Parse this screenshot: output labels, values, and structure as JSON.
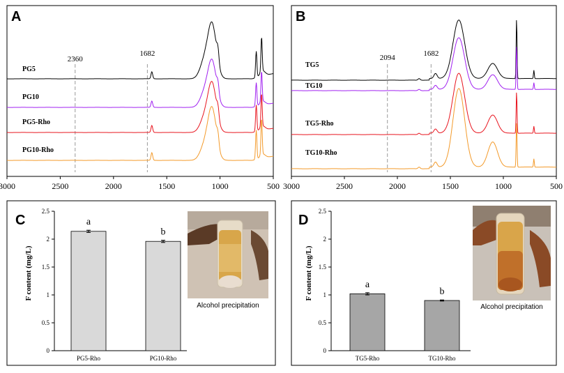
{
  "panels": {
    "A": {
      "letter": "A",
      "type": "line",
      "x_ticks": [
        "3000",
        "2500",
        "2000",
        "1500",
        "1000",
        "500"
      ],
      "xlim": [
        3000,
        500
      ],
      "markers": [
        "2360",
        "1682"
      ],
      "marker_values": [
        2360,
        1682
      ],
      "series": [
        {
          "name": "PG5",
          "color": "#000000"
        },
        {
          "name": "PG10",
          "color": "#a020f0"
        },
        {
          "name": "PG5-Rho",
          "color": "#e8141e"
        },
        {
          "name": "PG10-Rho",
          "color": "#f39a2a"
        }
      ]
    },
    "B": {
      "letter": "B",
      "type": "line",
      "x_ticks": [
        "3000",
        "2500",
        "2000",
        "1500",
        "1000",
        "500"
      ],
      "xlim": [
        3000,
        500
      ],
      "markers": [
        "2094",
        "1682"
      ],
      "marker_values": [
        2094,
        1682
      ],
      "series": [
        {
          "name": "TG5",
          "color": "#000000"
        },
        {
          "name": "TG10",
          "color": "#a020f0"
        },
        {
          "name": "TG5-Rho",
          "color": "#e8141e"
        },
        {
          "name": "TG10-Rho",
          "color": "#f39a2a"
        }
      ]
    },
    "C": {
      "letter": "C",
      "ylabel": "F content (mg/L)",
      "y_ticks": [
        "0",
        "0.5",
        "1",
        "1.5",
        "2",
        "2.5"
      ],
      "bar_color": "#d9d9d9",
      "photo_label": "Alcohol precipitation"
    },
    "D": {
      "letter": "D",
      "ylabel": "F content (mg/L)",
      "y_ticks": [
        "0",
        "0.5",
        "1",
        "1.5",
        "2",
        "2.5"
      ],
      "bar_color": "#a6a6a6",
      "photo_label": "Alcohol precipitation"
    }
  },
  "chart_data": [
    {
      "panel": "A",
      "type": "line",
      "xlabel": "",
      "ylabel": "",
      "xlim": [
        3000,
        500
      ],
      "series": [
        {
          "name": "PG5",
          "peaks_cm-1": [
            1640,
            1075,
            1020,
            660,
            610
          ]
        },
        {
          "name": "PG10",
          "peaks_cm-1": [
            1640,
            1075,
            1020,
            660,
            610
          ]
        },
        {
          "name": "PG5-Rho",
          "peaks_cm-1": [
            1640,
            1075,
            1020,
            660,
            610
          ]
        },
        {
          "name": "PG10-Rho",
          "peaks_cm-1": [
            1640,
            1075,
            1020,
            660,
            610
          ]
        }
      ],
      "annotations": [
        "2360",
        "1682"
      ]
    },
    {
      "panel": "B",
      "type": "line",
      "xlabel": "",
      "ylabel": "",
      "xlim": [
        3000,
        500
      ],
      "series": [
        {
          "name": "TG5",
          "peaks_cm-1": [
            1420,
            1100,
            875,
            710
          ]
        },
        {
          "name": "TG10",
          "peaks_cm-1": [
            1420,
            1100,
            875,
            710
          ]
        },
        {
          "name": "TG5-Rho",
          "peaks_cm-1": [
            1420,
            1100,
            875,
            710
          ]
        },
        {
          "name": "TG10-Rho",
          "peaks_cm-1": [
            1420,
            1100,
            875,
            710
          ]
        }
      ],
      "annotations": [
        "2094",
        "1682"
      ]
    },
    {
      "panel": "C",
      "type": "bar",
      "categories": [
        "PG5-Rho",
        "PG10-Rho"
      ],
      "values": [
        2.14,
        1.96
      ],
      "errors": [
        0.02,
        0.02
      ],
      "letters": [
        "a",
        "b"
      ],
      "ylabel": "F content (mg/L)",
      "ylim": [
        0,
        2.5
      ]
    },
    {
      "panel": "D",
      "type": "bar",
      "categories": [
        "TG5-Rho",
        "TG10-Rho"
      ],
      "values": [
        1.02,
        0.9
      ],
      "errors": [
        0.02,
        0.01
      ],
      "letters": [
        "a",
        "b"
      ],
      "ylabel": "F content (mg/L)",
      "ylim": [
        0,
        2.5
      ]
    }
  ]
}
